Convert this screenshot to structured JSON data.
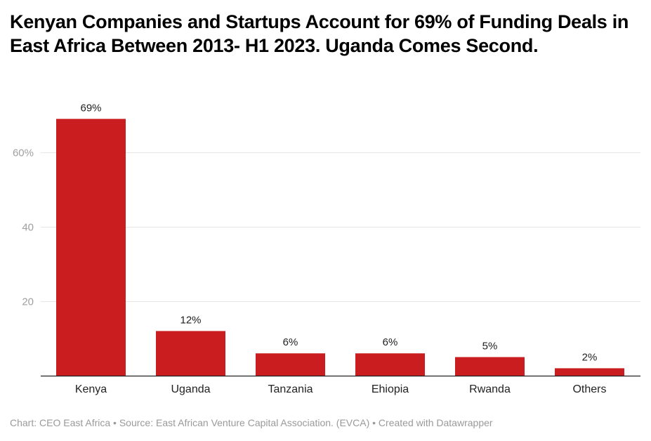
{
  "chart_data": {
    "type": "bar",
    "title": "Kenyan Companies and Startups Account for 69% of Funding Deals in East Africa Between 2013- H1 2023. Uganda Comes Second.",
    "xlabel": "",
    "ylabel": "",
    "categories": [
      "Kenya",
      "Uganda",
      "Tanzania",
      "Ehiopia",
      "Rwanda",
      "Others"
    ],
    "values": [
      69,
      12,
      6,
      6,
      5,
      2
    ],
    "value_labels": [
      "69%",
      "12%",
      "6%",
      "6%",
      "5%",
      "2%"
    ],
    "ylim": [
      0,
      75
    ],
    "yticks": [
      20,
      40,
      60
    ],
    "ytick_labels": [
      "20",
      "40",
      "60%"
    ],
    "grid": true,
    "bar_color": "#c91d1f",
    "footer": "Chart: CEO East Africa • Source: East African Venture Capital Association. (EVCA) • Created with Datawrapper"
  }
}
